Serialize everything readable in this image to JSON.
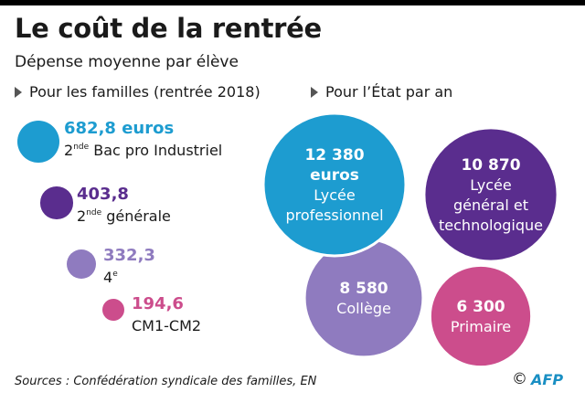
{
  "title": "Le coût de la rentrée",
  "subtitle": "Dépense moyenne par élève",
  "sections": {
    "families": "Pour les familles (rentrée 2018)",
    "state": "Pour l’État par an"
  },
  "colors": {
    "blue": "#1d9cd0",
    "purple": "#5a2d8e",
    "lavender": "#8f7bbf",
    "pink": "#cc4d8c"
  },
  "chart_data": [
    {
      "type": "bubble",
      "title": "Pour les familles (rentrée 2018)",
      "unit": "euros",
      "items": [
        {
          "value": 682.8,
          "value_label": "682,8 euros",
          "label_sup": "nde",
          "label_pre": "2",
          "label_post": " Bac pro Industriel",
          "color": "#1d9cd0"
        },
        {
          "value": 403.8,
          "value_label": "403,8",
          "label_sup": "nde",
          "label_pre": "2",
          "label_post": " générale",
          "color": "#5a2d8e"
        },
        {
          "value": 332.3,
          "value_label": "332,3",
          "label_sup": "e",
          "label_pre": "4",
          "label_post": "",
          "color": "#8f7bbf"
        },
        {
          "value": 194.6,
          "value_label": "194,6",
          "label_sup": "",
          "label_pre": "CM1-CM2",
          "label_post": "",
          "color": "#cc4d8c"
        }
      ]
    },
    {
      "type": "bubble",
      "title": "Pour l’État par an",
      "unit": "euros",
      "items": [
        {
          "value": 12380,
          "lines": [
            "12 380",
            "euros",
            "Lycée",
            "professionnel"
          ],
          "color": "#1d9cd0"
        },
        {
          "value": 10870,
          "lines": [
            "10 870",
            "Lycée",
            "général et",
            "technologique"
          ],
          "color": "#5a2d8e"
        },
        {
          "value": 8580,
          "lines": [
            "8 580",
            "Collège"
          ],
          "color": "#8f7bbf"
        },
        {
          "value": 6300,
          "lines": [
            "6 300",
            "Primaire"
          ],
          "color": "#cc4d8c"
        }
      ]
    }
  ],
  "footer": {
    "source": "Sources : Confédération syndicale des familles, EN",
    "copyright": "©",
    "brand": "AFP"
  }
}
